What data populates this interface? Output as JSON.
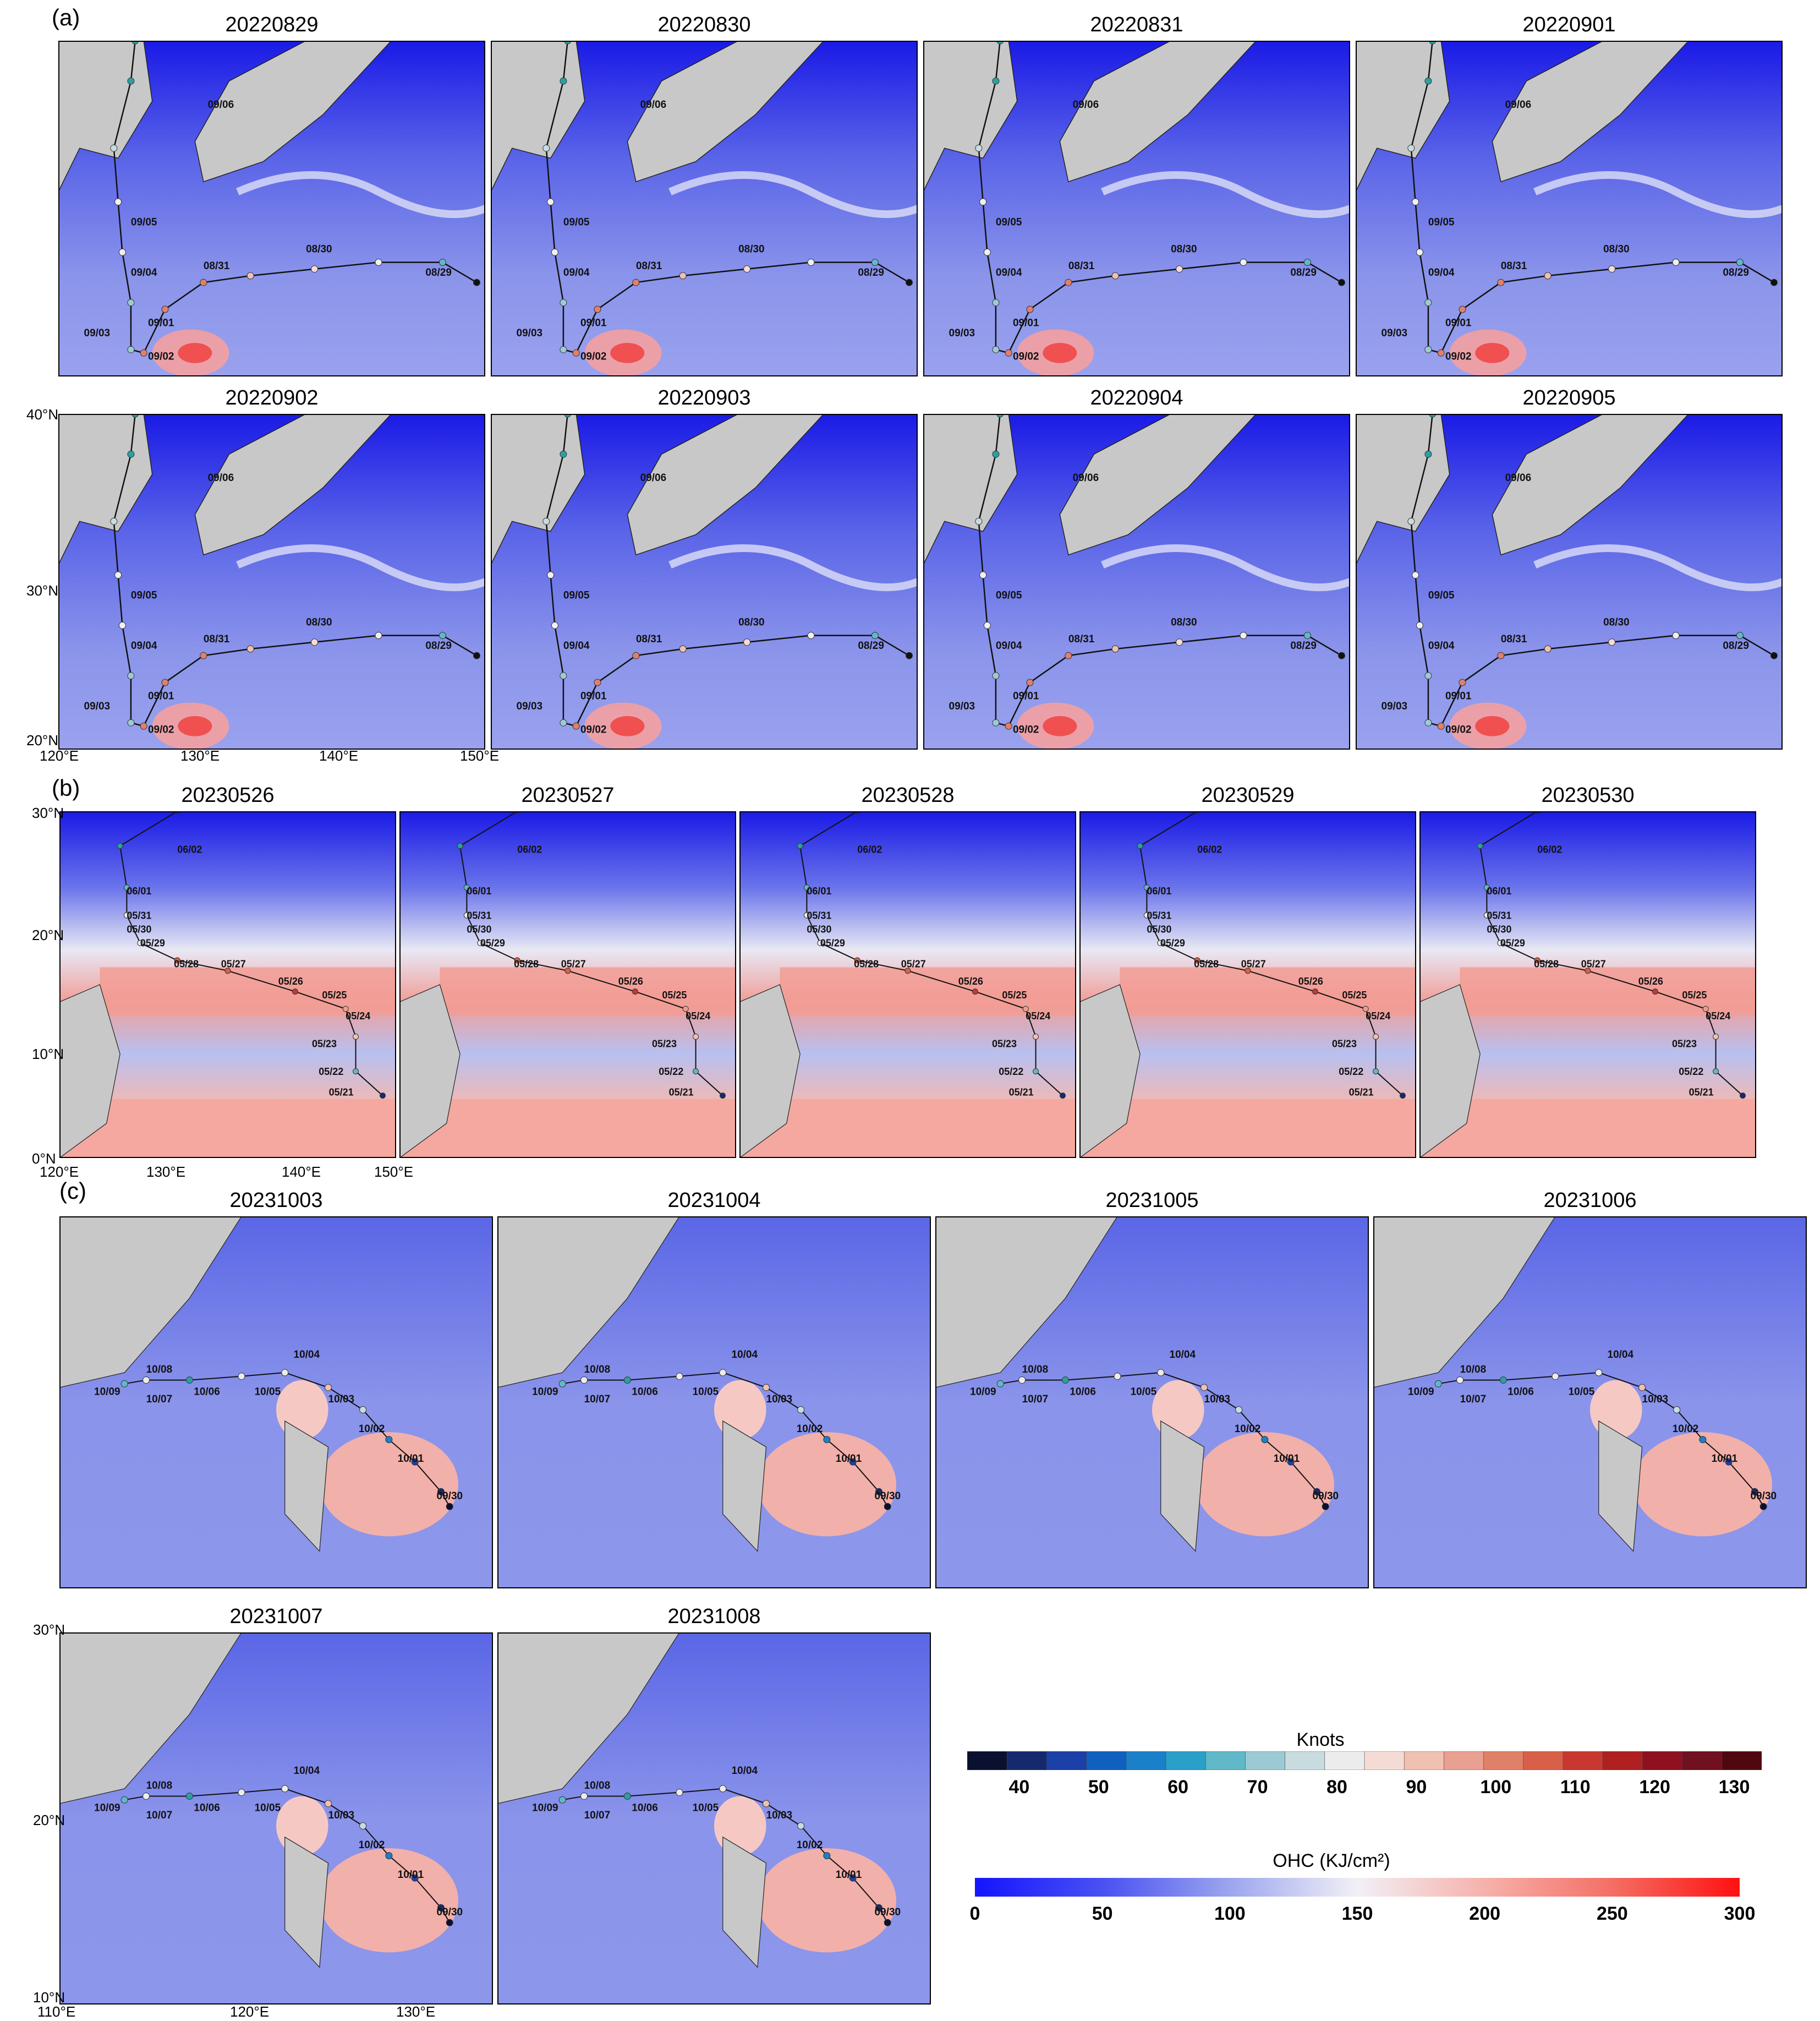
{
  "panels": [
    {
      "letter": "(a)",
      "titles": [
        "20220829",
        "20220830",
        "20220831",
        "20220901",
        "20220902",
        "20220903",
        "20220904",
        "20220905"
      ]
    },
    {
      "letter": "(b)",
      "titles": [
        "20230526",
        "20230527",
        "20230528",
        "20230529",
        "20230530"
      ]
    },
    {
      "letter": "(c)",
      "titles": [
        "20231003",
        "20231004",
        "20231005",
        "20231006",
        "20231007",
        "20231008"
      ]
    }
  ],
  "track_a": {
    "date_labels": [
      "09/06",
      "09/05",
      "09/04",
      "09/03",
      "09/01",
      "09/02",
      "08/31",
      "08/30",
      "08/29"
    ],
    "lat_ticks": [
      "40°N",
      "30°N",
      "20°N"
    ],
    "lon_ticks": [
      "120°E",
      "130°E",
      "140°E",
      "150°E"
    ]
  },
  "track_b": {
    "date_labels": [
      "06/02",
      "06/01",
      "05/31",
      "05/30",
      "05/29",
      "05/28",
      "05/27",
      "05/26",
      "05/25",
      "05/24",
      "05/23",
      "05/22",
      "05/21"
    ],
    "lat_ticks": [
      "30°N",
      "20°N",
      "10°N",
      "0°N"
    ],
    "lon_ticks": [
      "120°E",
      "130°E",
      "140°E",
      "150°E"
    ]
  },
  "track_c": {
    "date_labels": [
      "10/08",
      "10/09",
      "10/07",
      "10/06",
      "10/05",
      "10/04",
      "10/03",
      "10/02",
      "10/01",
      "09/30"
    ],
    "lat_ticks": [
      "30°N",
      "20°N",
      "10°N"
    ],
    "lon_ticks": [
      "110°E",
      "120°E",
      "130°E"
    ]
  },
  "colorbars": {
    "knots": {
      "title": "Knots",
      "ticks": [
        "40",
        "50",
        "60",
        "70",
        "80",
        "90",
        "100",
        "110",
        "120",
        "130"
      ],
      "colors": [
        "#0a1030",
        "#152a6e",
        "#1b40a8",
        "#1060c0",
        "#1a80c8",
        "#2aa0c8",
        "#60b8c8",
        "#9ccad4",
        "#c8dce0",
        "#ececec",
        "#f4dcd4",
        "#f0c0b0",
        "#e8a090",
        "#e08068",
        "#d86048",
        "#c83830",
        "#b02020",
        "#901020",
        "#701020",
        "#500810"
      ]
    },
    "ohc": {
      "title": "OHC (KJ/cm²)",
      "ticks": [
        "0",
        "50",
        "100",
        "150",
        "200",
        "250",
        "300"
      ]
    }
  }
}
